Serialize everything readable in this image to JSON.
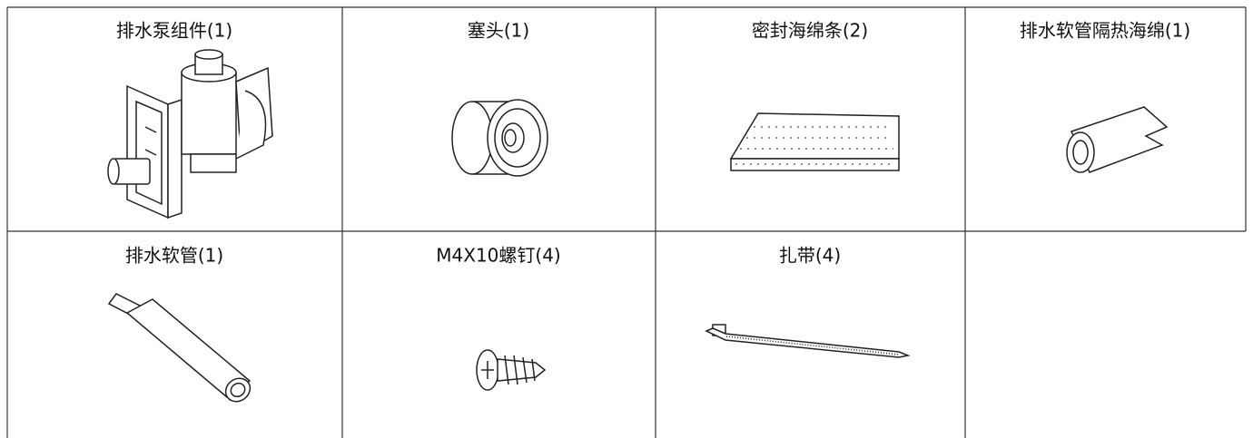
{
  "table": {
    "rows": [
      [
        "排水泵组件(1)",
        "塞头(1)",
        "密封海绵条(2)",
        "排水软管隔热海绵(1)"
      ],
      [
        "排水软管(1)",
        "M4X10螺钉(4)",
        "扎带(4)"
      ]
    ]
  }
}
